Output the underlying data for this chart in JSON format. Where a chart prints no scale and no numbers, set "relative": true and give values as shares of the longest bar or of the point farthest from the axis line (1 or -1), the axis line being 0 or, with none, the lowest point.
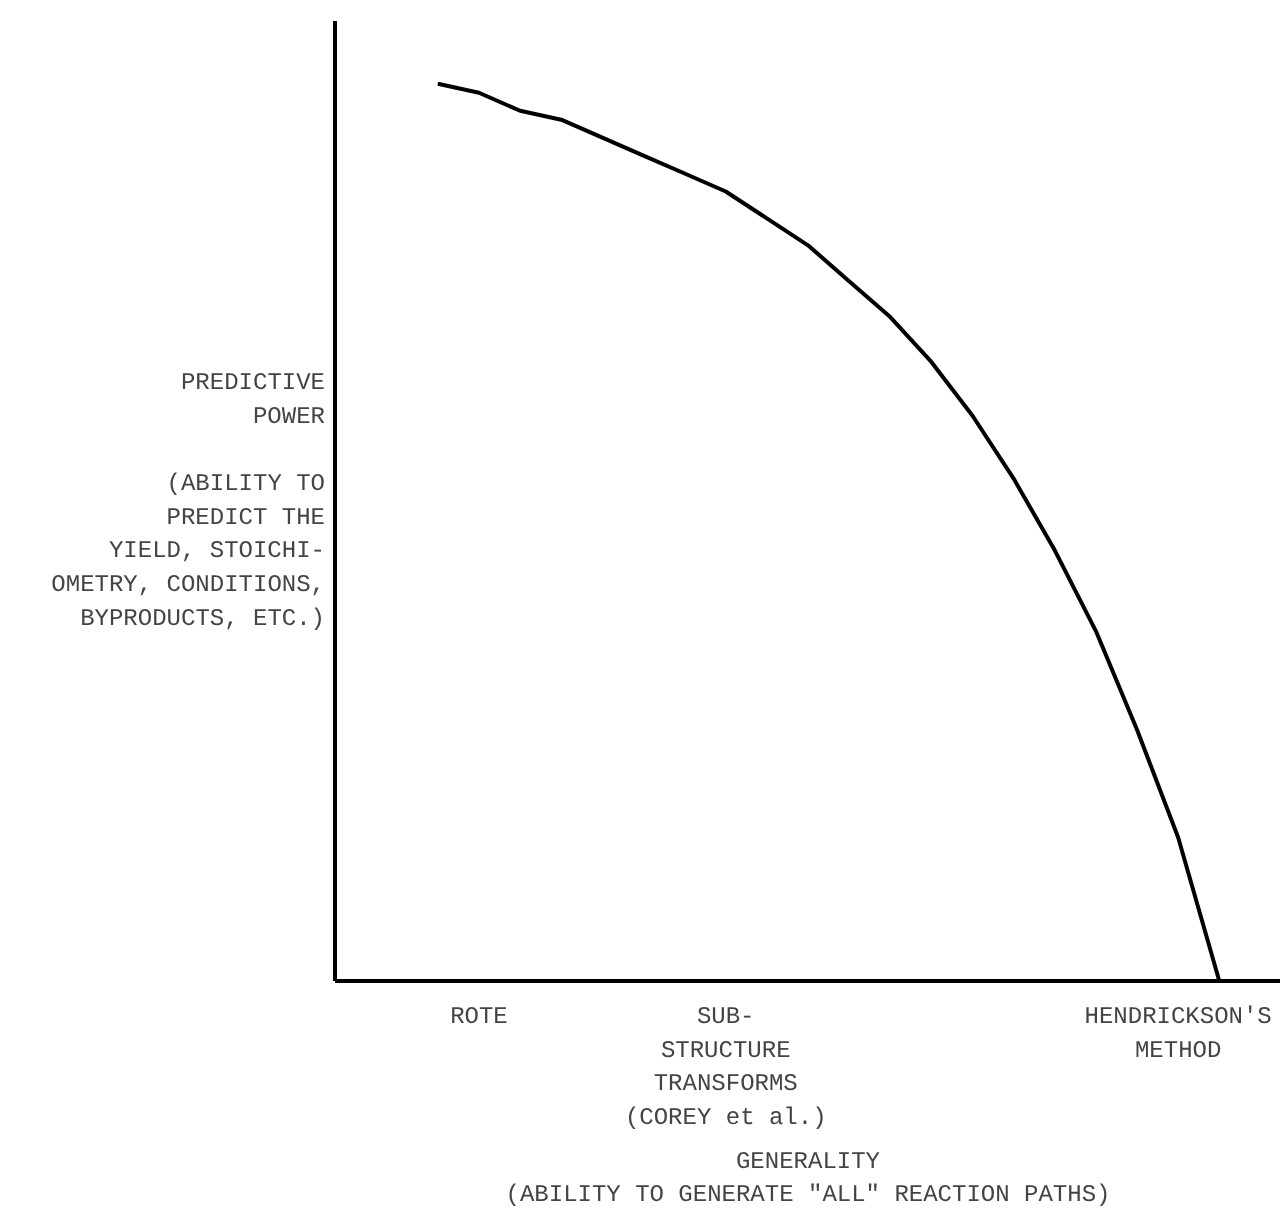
{
  "chart_data": {
    "type": "line",
    "relative": true,
    "xlabel": "GENERALITY\n(ABILITY TO GENERATE \"ALL\" REACTION PATHS)",
    "ylabel": "PREDICTIVE\nPOWER\n\n(ABILITY TO\nPREDICT THE\nYIELD, STOICHI-\nOMETRY, CONDITIONS,\nBYPRODUCTS, ETC.)",
    "categories": [
      null,
      null,
      null,
      "ROTE",
      null,
      null,
      null,
      null,
      null,
      "SUB-\nSTRUCTURE\nTRANSFORMS\n(COREY et al.)",
      null,
      null,
      null,
      null,
      null,
      null,
      null,
      null,
      null,
      null,
      "HENDRICKSON'S\nMETHOD",
      null,
      null
    ],
    "values": [
      null,
      null,
      1.0,
      0.99,
      0.97,
      0.96,
      0.94,
      0.92,
      0.9,
      0.88,
      0.85,
      0.82,
      0.78,
      0.74,
      0.69,
      0.63,
      0.56,
      0.48,
      0.39,
      0.28,
      0.16,
      0,
      null
    ],
    "color": "#000000",
    "grid": false
  }
}
